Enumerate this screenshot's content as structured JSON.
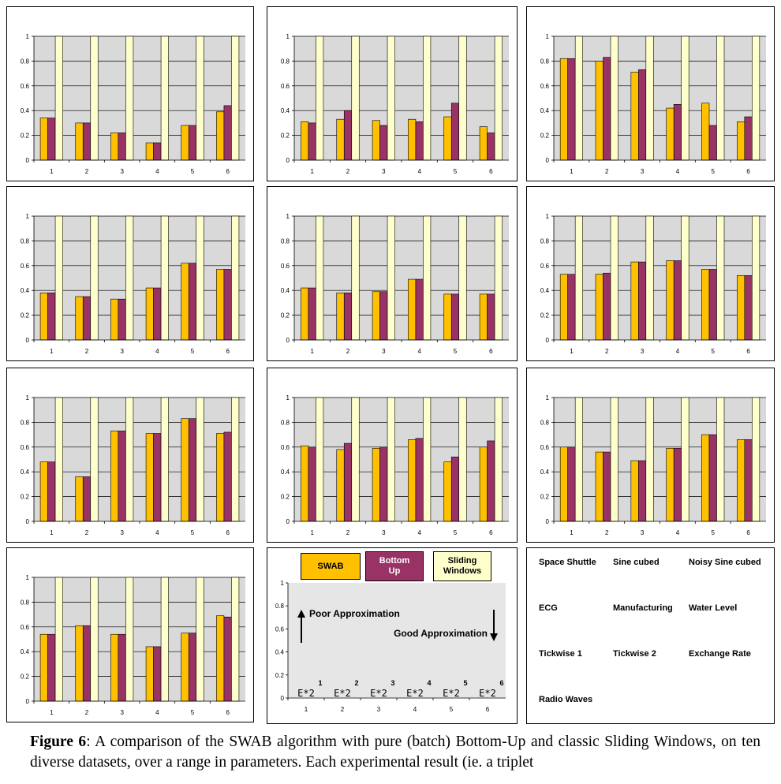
{
  "colors": {
    "swab": "#FFC000",
    "bottom_up": "#993366",
    "sliding_windows": "#FFFFCC",
    "plot_bg": "#D9D9D9",
    "grid": "#000000"
  },
  "chart_data": [
    {
      "type": "bar",
      "categories": [
        "1",
        "2",
        "3",
        "4",
        "5",
        "6"
      ],
      "yticks": [
        "0",
        "0.2",
        "0.4",
        "0.6",
        "0.8",
        "1"
      ],
      "ylim": [
        0,
        1
      ],
      "series": [
        {
          "name": "SWAB",
          "values": [
            0.34,
            0.3,
            0.22,
            0.14,
            0.28,
            0.39
          ]
        },
        {
          "name": "Bottom Up",
          "values": [
            0.34,
            0.3,
            0.22,
            0.14,
            0.28,
            0.44
          ]
        },
        {
          "name": "Sliding Windows",
          "values": [
            1,
            1,
            1,
            1,
            1,
            1
          ]
        }
      ]
    },
    {
      "type": "bar",
      "categories": [
        "1",
        "2",
        "3",
        "4",
        "5",
        "6"
      ],
      "yticks": [
        "0",
        "0.2",
        "0.4",
        "0.6",
        "0.8",
        "1"
      ],
      "ylim": [
        0,
        1
      ],
      "series": [
        {
          "name": "SWAB",
          "values": [
            0.31,
            0.33,
            0.32,
            0.33,
            0.35,
            0.27
          ]
        },
        {
          "name": "Bottom Up",
          "values": [
            0.3,
            0.4,
            0.28,
            0.31,
            0.46,
            0.22
          ]
        },
        {
          "name": "Sliding Windows",
          "values": [
            1,
            1,
            1,
            1,
            1,
            1
          ]
        }
      ]
    },
    {
      "type": "bar",
      "categories": [
        "1",
        "2",
        "3",
        "4",
        "5",
        "6"
      ],
      "yticks": [
        "0",
        "0.2",
        "0.4",
        "0.6",
        "0.8",
        "1"
      ],
      "ylim": [
        0,
        1
      ],
      "series": [
        {
          "name": "SWAB",
          "values": [
            0.82,
            0.8,
            0.71,
            0.42,
            0.46,
            0.31
          ]
        },
        {
          "name": "Bottom Up",
          "values": [
            0.82,
            0.83,
            0.73,
            0.45,
            0.28,
            0.35
          ]
        },
        {
          "name": "Sliding Windows",
          "values": [
            1,
            1,
            1,
            1,
            1,
            1
          ]
        }
      ]
    },
    {
      "type": "bar",
      "categories": [
        "1",
        "2",
        "3",
        "4",
        "5",
        "6"
      ],
      "yticks": [
        "0",
        "0.2",
        "0.4",
        "0.6",
        "0.8",
        "1"
      ],
      "ylim": [
        0,
        1
      ],
      "series": [
        {
          "name": "SWAB",
          "values": [
            0.38,
            0.35,
            0.33,
            0.42,
            0.62,
            0.57
          ]
        },
        {
          "name": "Bottom Up",
          "values": [
            0.38,
            0.35,
            0.33,
            0.42,
            0.62,
            0.57
          ]
        },
        {
          "name": "Sliding Windows",
          "values": [
            1,
            1,
            1,
            1,
            1,
            1
          ]
        }
      ]
    },
    {
      "type": "bar",
      "categories": [
        "1",
        "2",
        "3",
        "4",
        "5",
        "6"
      ],
      "yticks": [
        "0",
        "0.2",
        "0.4",
        "0.6",
        "0.8",
        "1"
      ],
      "ylim": [
        0,
        1
      ],
      "series": [
        {
          "name": "SWAB",
          "values": [
            0.42,
            0.38,
            0.39,
            0.49,
            0.37,
            0.37
          ]
        },
        {
          "name": "Bottom Up",
          "values": [
            0.42,
            0.38,
            0.39,
            0.49,
            0.37,
            0.37
          ]
        },
        {
          "name": "Sliding Windows",
          "values": [
            1,
            1,
            1,
            1,
            1,
            1
          ]
        }
      ]
    },
    {
      "type": "bar",
      "categories": [
        "1",
        "2",
        "3",
        "4",
        "5",
        "6"
      ],
      "yticks": [
        "0",
        "0.2",
        "0.4",
        "0.6",
        "0.8",
        "1"
      ],
      "ylim": [
        0,
        1
      ],
      "series": [
        {
          "name": "SWAB",
          "values": [
            0.53,
            0.53,
            0.63,
            0.64,
            0.57,
            0.52
          ]
        },
        {
          "name": "Bottom Up",
          "values": [
            0.53,
            0.54,
            0.63,
            0.64,
            0.57,
            0.52
          ]
        },
        {
          "name": "Sliding Windows",
          "values": [
            1,
            1,
            1,
            1,
            1,
            1
          ]
        }
      ]
    },
    {
      "type": "bar",
      "categories": [
        "1",
        "2",
        "3",
        "4",
        "5",
        "6"
      ],
      "yticks": [
        "0",
        "0.2",
        "0.4",
        "0.6",
        "0.8",
        "1"
      ],
      "ylim": [
        0,
        1
      ],
      "series": [
        {
          "name": "SWAB",
          "values": [
            0.48,
            0.36,
            0.73,
            0.71,
            0.83,
            0.71
          ]
        },
        {
          "name": "Bottom Up",
          "values": [
            0.48,
            0.36,
            0.73,
            0.71,
            0.83,
            0.72
          ]
        },
        {
          "name": "Sliding Windows",
          "values": [
            1,
            1,
            1,
            1,
            1,
            1
          ]
        }
      ]
    },
    {
      "type": "bar",
      "categories": [
        "1",
        "2",
        "3",
        "4",
        "5",
        "6"
      ],
      "yticks": [
        "0",
        "0.2",
        "0.4",
        "0.6",
        "0.8",
        "1"
      ],
      "ylim": [
        0,
        1
      ],
      "series": [
        {
          "name": "SWAB",
          "values": [
            0.61,
            0.58,
            0.59,
            0.66,
            0.48,
            0.6
          ]
        },
        {
          "name": "Bottom Up",
          "values": [
            0.6,
            0.63,
            0.6,
            0.67,
            0.52,
            0.65
          ]
        },
        {
          "name": "Sliding Windows",
          "values": [
            1,
            1,
            1,
            1,
            1,
            1
          ]
        }
      ]
    },
    {
      "type": "bar",
      "categories": [
        "1",
        "2",
        "3",
        "4",
        "5",
        "6"
      ],
      "yticks": [
        "0",
        "0.2",
        "0.4",
        "0.6",
        "0.8",
        "1"
      ],
      "ylim": [
        0,
        1
      ],
      "series": [
        {
          "name": "SWAB",
          "values": [
            0.6,
            0.56,
            0.49,
            0.59,
            0.7,
            0.66
          ]
        },
        {
          "name": "Bottom Up",
          "values": [
            0.6,
            0.56,
            0.49,
            0.59,
            0.7,
            0.66
          ]
        },
        {
          "name": "Sliding Windows",
          "values": [
            1,
            1,
            1,
            1,
            1,
            1
          ]
        }
      ]
    },
    {
      "type": "bar",
      "categories": [
        "1",
        "2",
        "3",
        "4",
        "5",
        "6"
      ],
      "yticks": [
        "0",
        "0.2",
        "0.4",
        "0.6",
        "0.8",
        "1"
      ],
      "ylim": [
        0,
        1
      ],
      "series": [
        {
          "name": "SWAB",
          "values": [
            0.54,
            0.61,
            0.54,
            0.44,
            0.55,
            0.69
          ]
        },
        {
          "name": "Bottom Up",
          "values": [
            0.54,
            0.61,
            0.54,
            0.44,
            0.55,
            0.68
          ]
        },
        {
          "name": "Sliding Windows",
          "values": [
            1,
            1,
            1,
            1,
            1,
            1
          ]
        }
      ]
    }
  ],
  "legend": {
    "swab": "SWAB",
    "bottom_up": [
      "Bottom",
      "Up"
    ],
    "sliding": [
      "Sliding",
      "Windows"
    ],
    "yticks": [
      "0",
      "0.2",
      "0.4",
      "0.6",
      "0.8",
      "1"
    ],
    "xticks": [
      "1",
      "2",
      "3",
      "4",
      "5",
      "6"
    ],
    "param_base": "E*2",
    "exponents": [
      "1",
      "2",
      "3",
      "4",
      "5",
      "6"
    ],
    "poor": "Poor Approximation",
    "good": "Good Approximation"
  },
  "datasets": [
    "Space Shuttle",
    "Sine cubed",
    "Noisy Sine cubed",
    "ECG",
    "Manufacturing",
    "Water Level",
    "Tickwise 1",
    "Tickwise 2",
    "Exchange Rate",
    "Radio Waves"
  ],
  "caption": {
    "label": "Figure 6",
    "text": ": A comparison of the SWAB algorithm with pure (batch) Bottom-Up and classic Sliding Windows, on ten diverse datasets, over a range in parameters. Each experimental result (ie. a triplet"
  }
}
